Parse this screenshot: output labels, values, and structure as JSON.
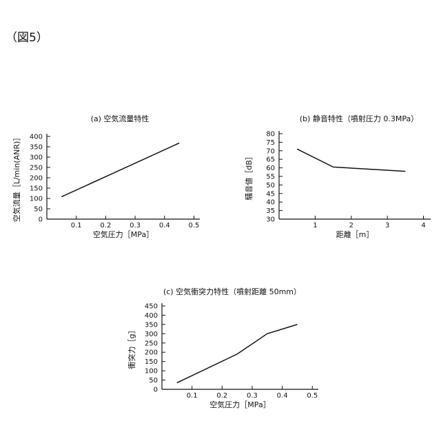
{
  "figure_label": "（図5）",
  "chart_data": [
    {
      "type": "line",
      "title": "(a) 空気流量特性",
      "xlabel": "空気圧力［MPa］",
      "ylabel": "空気流量［L/min(ANR)］",
      "xlim": [
        0,
        0.52
      ],
      "ylim": [
        0,
        400
      ],
      "xticks": [
        0.1,
        0.2,
        0.3,
        0.4,
        0.5
      ],
      "xtick_labels": [
        "0.1",
        "0.2",
        "0.3",
        "0.4",
        "0.5"
      ],
      "yticks": [
        0,
        50,
        100,
        150,
        200,
        250,
        300,
        350,
        400
      ],
      "ytick_labels": [
        "0",
        "50",
        "100",
        "150",
        "200",
        "250",
        "300",
        "350",
        "400"
      ],
      "grid": false,
      "series": [
        {
          "x": [
            0.05,
            0.45
          ],
          "y": [
            108,
            368
          ]
        }
      ]
    },
    {
      "type": "line",
      "title": "(b) 静音特性（噴射圧力 0.3MPa）",
      "xlabel": "距離［m］",
      "ylabel": "騒音値［dB］",
      "xlim": [
        0,
        4.2
      ],
      "ylim": [
        30,
        80
      ],
      "xticks": [
        1,
        2,
        3,
        4
      ],
      "xtick_labels": [
        "1",
        "2",
        "3",
        "4"
      ],
      "yticks": [
        30,
        35,
        40,
        45,
        50,
        55,
        60,
        65,
        70,
        75,
        80
      ],
      "ytick_labels": [
        "30",
        "35",
        "40",
        "45",
        "50",
        "55",
        "60",
        "65",
        "70",
        "75",
        "80"
      ],
      "grid": false,
      "series": [
        {
          "x": [
            0.5,
            1.5,
            3.5
          ],
          "y": [
            71,
            60.5,
            58
          ]
        }
      ]
    },
    {
      "type": "line",
      "title": "(c) 空気衝突力特性（噴射距離 50mm）",
      "xlabel": "空気圧力［MPa］",
      "ylabel": "衝突力［g］",
      "xlim": [
        0,
        0.52
      ],
      "ylim": [
        0,
        450
      ],
      "xticks": [
        0.1,
        0.2,
        0.3,
        0.4,
        0.5
      ],
      "xtick_labels": [
        "0.1",
        "0.2",
        "0.3",
        "0.4",
        "0.5"
      ],
      "yticks": [
        0,
        50,
        100,
        150,
        200,
        250,
        300,
        350,
        400,
        450
      ],
      "ytick_labels": [
        "0",
        "50",
        "100",
        "150",
        "200",
        "250",
        "300",
        "350",
        "400",
        "450"
      ],
      "grid": false,
      "series": [
        {
          "x": [
            0.05,
            0.25,
            0.35,
            0.45
          ],
          "y": [
            35,
            190,
            300,
            350
          ]
        }
      ]
    }
  ]
}
